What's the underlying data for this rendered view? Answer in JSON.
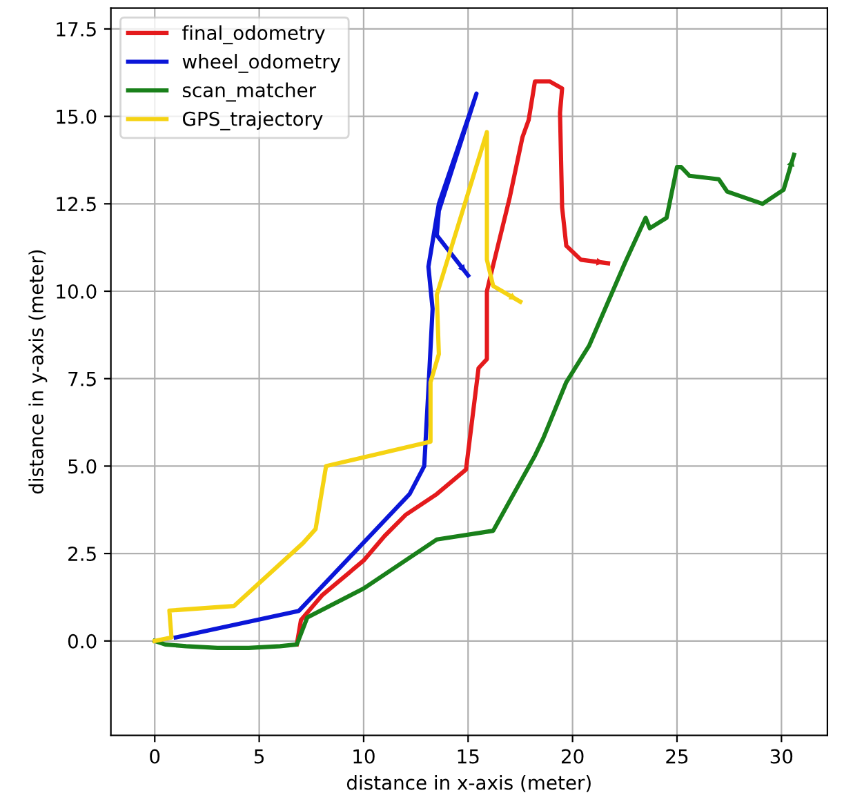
{
  "chart_data": {
    "type": "line",
    "xlabel": "distance in x-axis (meter)",
    "ylabel": "distance in y-axis (meter)",
    "xlim": [
      -2.1,
      32.2
    ],
    "ylim": [
      -2.7,
      18.1
    ],
    "xticks": [
      0,
      5,
      10,
      15,
      20,
      25,
      30
    ],
    "yticks": [
      {
        "value": 0,
        "label": "0.0"
      },
      {
        "value": 2.5,
        "label": "2.5"
      },
      {
        "value": 5,
        "label": "5.0"
      },
      {
        "value": 7.5,
        "label": "7.5"
      },
      {
        "value": 10,
        "label": "10.0"
      },
      {
        "value": 12.5,
        "label": "12.5"
      },
      {
        "value": 15,
        "label": "15.0"
      },
      {
        "value": 17.5,
        "label": "17.5"
      }
    ],
    "grid": true,
    "legend": "top left",
    "line_style": "solid",
    "marker": "none",
    "series": [
      {
        "name": "final_odometry",
        "color": "#e41a1c",
        "x": [
          6.8,
          7.0,
          8,
          10,
          11,
          12,
          13.5,
          14.9,
          15.5,
          15.9,
          15.9,
          16.1,
          17.0,
          17.6,
          17.9,
          18.2,
          18.9,
          19.5,
          19.4,
          19.5,
          19.7,
          20.4,
          21.7
        ],
        "values": [
          -0.1,
          0.6,
          1.3,
          2.3,
          3.0,
          3.6,
          4.2,
          4.9,
          7.8,
          8.06,
          10.0,
          10.5,
          12.7,
          14.4,
          14.9,
          16.0,
          16.0,
          15.8,
          15.1,
          12.4,
          11.3,
          10.9,
          10.8
        ]
      },
      {
        "name": "wheel_odometry",
        "color": "#0b16d8",
        "x": [
          1,
          6.9,
          12.2,
          12.9,
          13.1,
          13.3,
          13.1,
          13.6,
          15.4,
          13.6,
          13.5,
          15.0
        ],
        "values": [
          0.1,
          0.86,
          4.2,
          5.0,
          7.2,
          9.5,
          10.7,
          12.5,
          15.65,
          12.3,
          11.6,
          10.45
        ]
      },
      {
        "name": "scan_matcher",
        "color": "#19801a",
        "x": [
          0,
          0.5,
          1.5,
          3,
          4.5,
          6,
          6.8,
          7.3,
          10.0,
          13.5,
          16.2,
          18.2,
          18.6,
          19.7,
          20.8,
          22.5,
          23.5,
          23.7,
          24.5,
          25.0,
          25.2,
          25.6,
          27.0,
          27.4,
          29.1,
          30.1,
          30.6
        ],
        "values": [
          0,
          -0.1,
          -0.15,
          -0.2,
          -0.2,
          -0.15,
          -0.1,
          0.67,
          1.5,
          2.9,
          3.15,
          5.3,
          5.8,
          7.4,
          8.45,
          10.8,
          12.1,
          11.8,
          12.1,
          13.55,
          13.55,
          13.3,
          13.2,
          12.85,
          12.5,
          12.9,
          13.9
        ]
      },
      {
        "name": "GPS_trajectory",
        "color": "#f5d313",
        "x": [
          0,
          0.8,
          0.7,
          3.8,
          7.1,
          7.7,
          8.2,
          13.2,
          13.2,
          13.6,
          13.5,
          15.9,
          15.9,
          16.2,
          17.5
        ],
        "values": [
          0,
          0.1,
          0.87,
          1.0,
          2.8,
          3.2,
          5.0,
          5.7,
          7.4,
          8.2,
          9.9,
          14.55,
          10.9,
          10.15,
          9.7
        ]
      }
    ]
  }
}
